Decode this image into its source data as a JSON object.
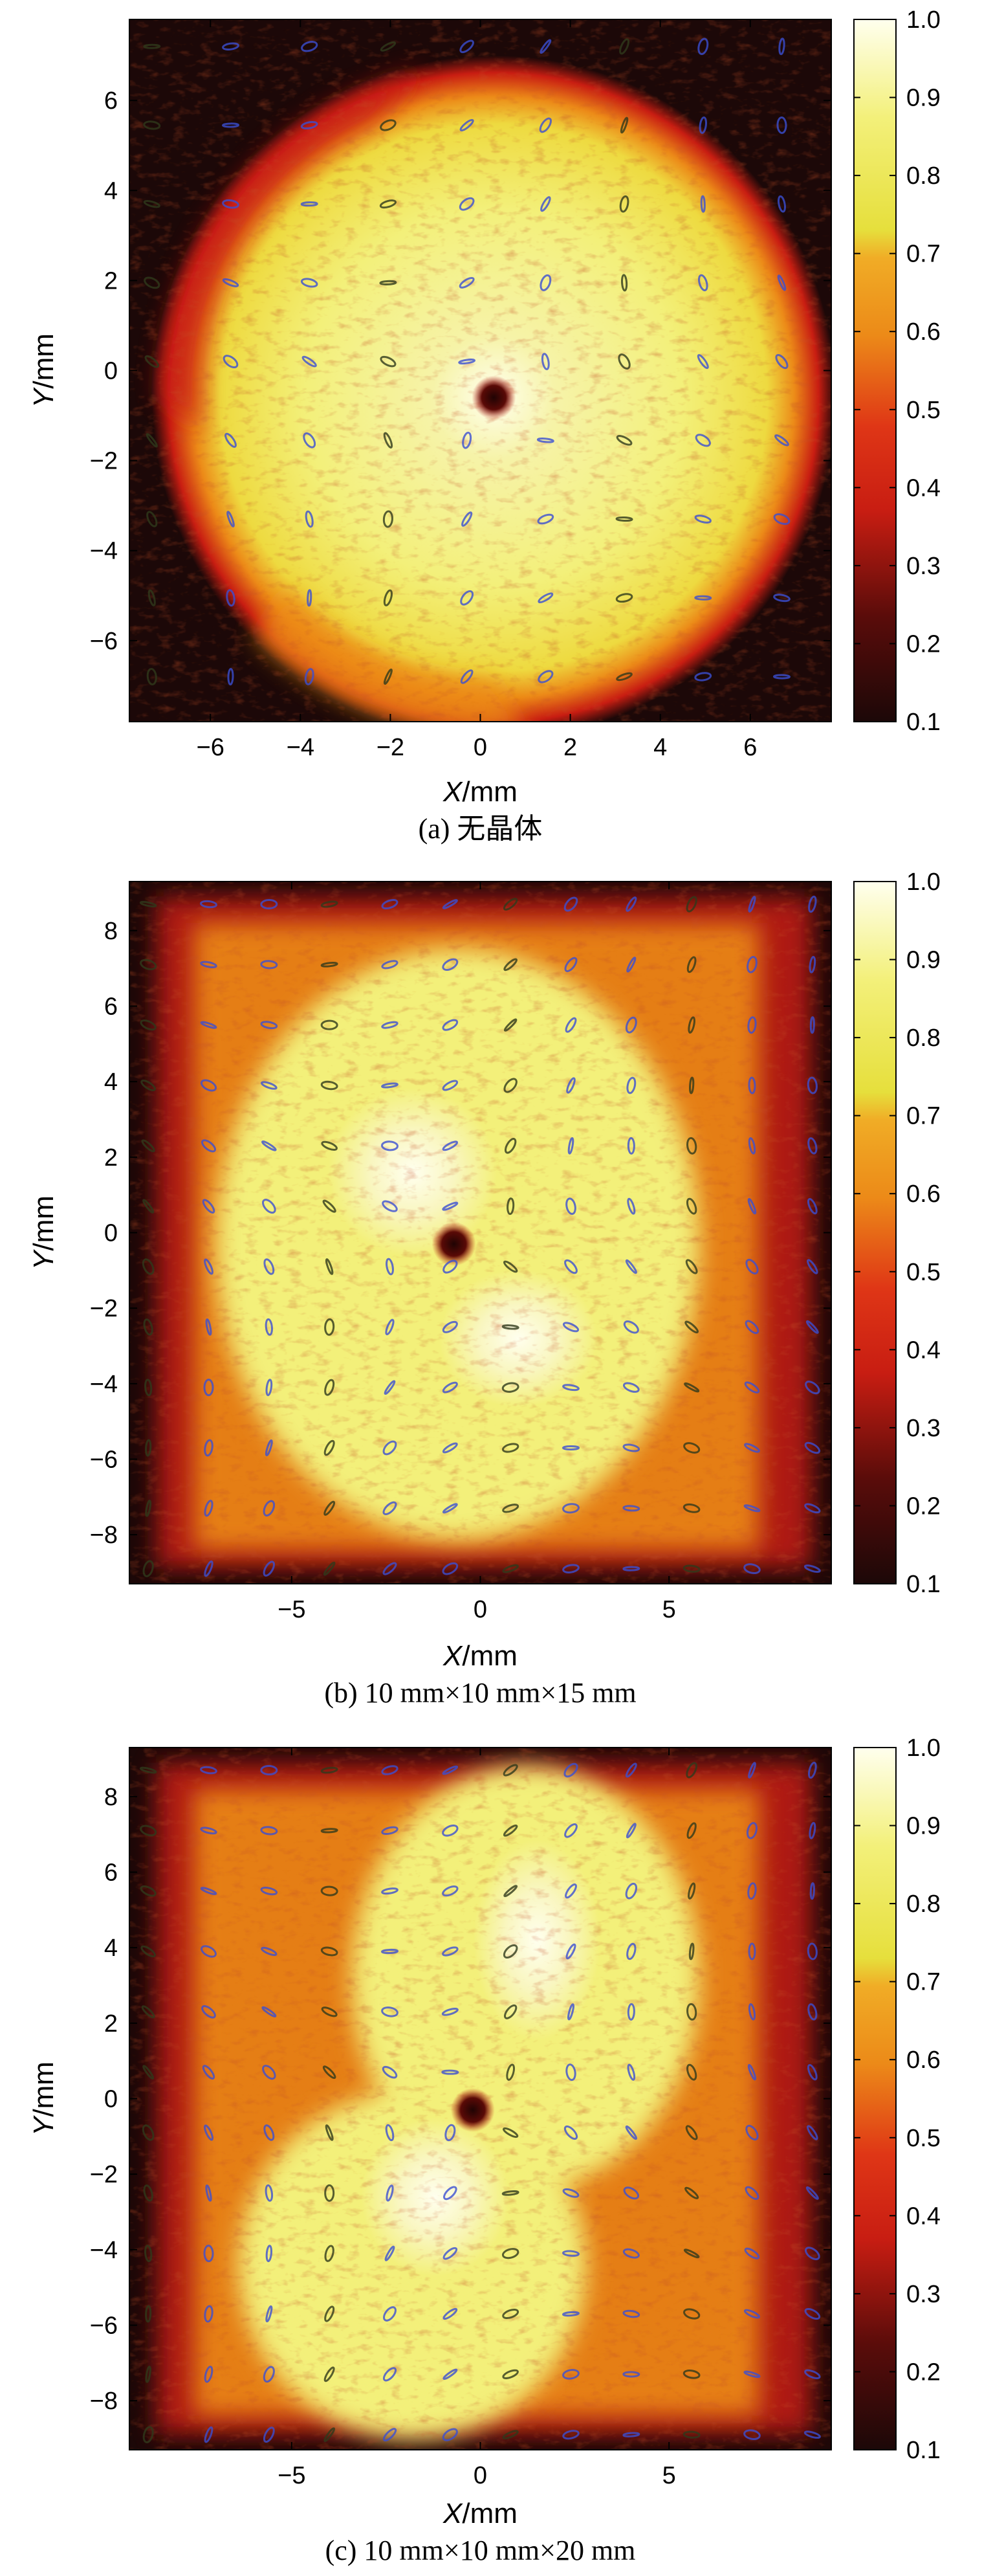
{
  "chart_data": [
    {
      "type": "heatmap",
      "caption": "(a) 无晶体",
      "xlabel_var": "X",
      "xlabel_unit": "/mm",
      "ylabel_var": "Y",
      "ylabel_unit": "/mm",
      "xticks": [
        -6,
        -4,
        -2,
        0,
        2,
        4,
        6
      ],
      "yticks": [
        6,
        4,
        2,
        0,
        -2,
        -4,
        -6
      ],
      "xlim": [
        -7.8,
        7.8
      ],
      "ylim": [
        -7.8,
        7.8
      ],
      "colorbar_ticks": [
        "1.0",
        "0.9",
        "0.8",
        "0.7",
        "0.6",
        "0.5",
        "0.4",
        "0.3",
        "0.2",
        "0.1"
      ],
      "colorbar_range": [
        0.1,
        1.0
      ],
      "colormap": "hot-yellow",
      "intensity_pattern": "circular beam, near-uniform core, dark spot at center",
      "beam_center": [
        0.3,
        -0.6
      ],
      "beam_radius_mm": 7.6,
      "polarization_overlay": "ellipses on a grid, blue and black"
    },
    {
      "type": "heatmap",
      "caption": "(b) 10 mm×10 mm×15 mm",
      "xlabel_var": "X",
      "xlabel_unit": "/mm",
      "ylabel_var": "Y",
      "ylabel_unit": "/mm",
      "xticks": [
        -5,
        0,
        5
      ],
      "yticks": [
        8,
        6,
        4,
        2,
        0,
        -2,
        -4,
        -6,
        -8
      ],
      "xlim": [
        -9.3,
        9.3
      ],
      "ylim": [
        -9.3,
        9.3
      ],
      "colorbar_ticks": [
        "1.0",
        "0.9",
        "0.8",
        "0.7",
        "0.6",
        "0.5",
        "0.4",
        "0.3",
        "0.2",
        "0.1"
      ],
      "colorbar_range": [
        0.1,
        1.0
      ],
      "colormap": "hot-yellow",
      "intensity_pattern": "wide beam with bright lobes, dark spot near center",
      "beam_center": [
        -0.7,
        -0.3
      ],
      "polarization_overlay": "ellipses on a grid, blue and black"
    },
    {
      "type": "heatmap",
      "caption": "(c) 10 mm×10 mm×20 mm",
      "xlabel_var": "X",
      "xlabel_unit": "/mm",
      "ylabel_var": "Y",
      "ylabel_unit": "/mm",
      "xticks": [
        -5,
        0,
        5
      ],
      "yticks": [
        8,
        6,
        4,
        2,
        0,
        -2,
        -4,
        -6,
        -8
      ],
      "xlim": [
        -9.3,
        9.3
      ],
      "ylim": [
        -9.3,
        9.3
      ],
      "colorbar_ticks": [
        "1.0",
        "0.9",
        "0.8",
        "0.7",
        "0.6",
        "0.5",
        "0.4",
        "0.3",
        "0.2",
        "0.1"
      ],
      "colorbar_range": [
        0.1,
        1.0
      ],
      "colormap": "hot-yellow",
      "intensity_pattern": "bright bilobed pattern, dark spot near center",
      "beam_center": [
        -0.2,
        -0.3
      ],
      "polarization_overlay": "ellipses on a grid, blue and black"
    }
  ],
  "colors": {
    "peak": "#ffffee",
    "yellow": "#f3f07a",
    "orange": "#ec8a18",
    "red": "#c81d12",
    "dark": "#1c0808",
    "ellipse_blue": "#3b4fd2",
    "ellipse_dark": "#2f3a1c"
  }
}
